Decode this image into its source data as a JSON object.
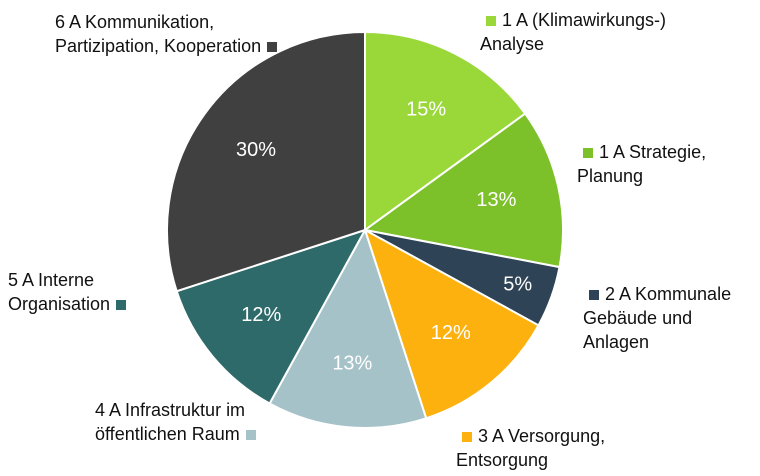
{
  "chart_data": {
    "type": "pie",
    "categories": [
      "1 A (Klimawirkungs-) Analyse",
      "1 A Strategie, Planung",
      "2 A Kommunale Gebäude und Anlagen",
      "3 A Versorgung, Entsorgung",
      "4 A Infrastruktur im öffentlichen Raum",
      "5 A Interne Organisation",
      "6 A Kommunikation, Partizipation, Kooperation"
    ],
    "values": [
      15,
      13,
      5,
      12,
      13,
      12,
      30
    ],
    "value_labels": [
      "15%",
      "13%",
      "5%",
      "12%",
      "13%",
      "12%",
      "30%"
    ],
    "colors": [
      "#9ad83a",
      "#7cc12a",
      "#2f4356",
      "#fdb10f",
      "#a5c2c8",
      "#2f6a6b",
      "#404040"
    ]
  }
}
